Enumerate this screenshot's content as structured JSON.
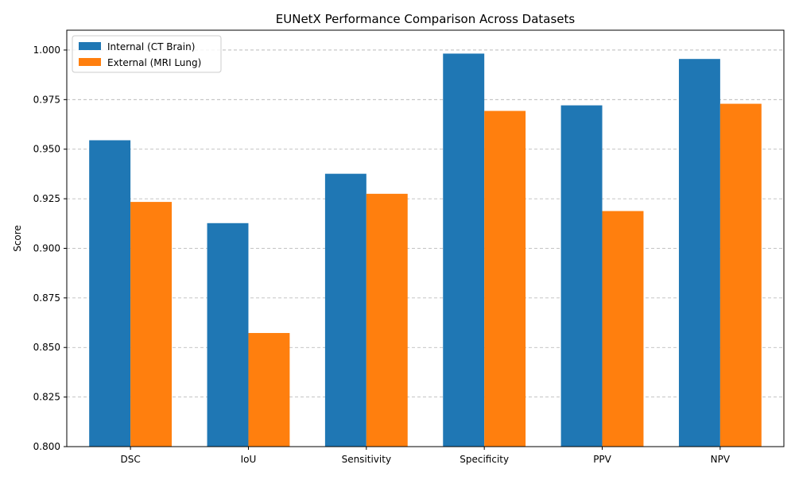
{
  "chart_data": {
    "type": "bar",
    "title": "EUNetX Performance Comparison Across Datasets",
    "ylabel": "Score",
    "xlabel": "",
    "ylim": [
      0.8,
      1.01
    ],
    "yticks": [
      0.8,
      0.825,
      0.85,
      0.875,
      0.9,
      0.925,
      0.95,
      0.975,
      1.0
    ],
    "ytick_labels": [
      "0.800",
      "0.825",
      "0.850",
      "0.875",
      "0.900",
      "0.925",
      "0.950",
      "0.975",
      "1.000"
    ],
    "categories": [
      "DSC",
      "IoU",
      "Sensitivity",
      "Specificity",
      "PPV",
      "NPV"
    ],
    "grid": true,
    "legend_position": "top-left",
    "series": [
      {
        "name": "Internal (CT Brain)",
        "color": "#1f77b4",
        "values": [
          0.9545,
          0.9127,
          0.9376,
          0.9982,
          0.9721,
          0.9955
        ]
      },
      {
        "name": "External (MRI Lung)",
        "color": "#ff7f0e",
        "values": [
          0.9234,
          0.8573,
          0.9275,
          0.9693,
          0.9188,
          0.9729
        ]
      }
    ]
  }
}
